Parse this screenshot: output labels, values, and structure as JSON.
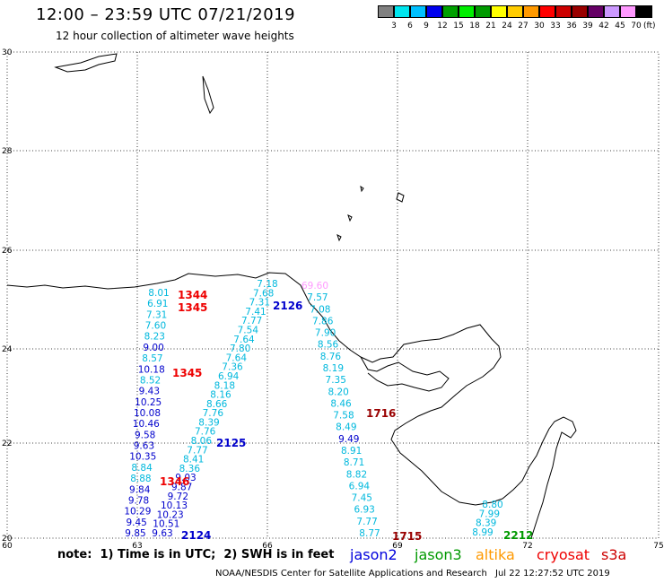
{
  "header": {
    "title": "12:00 – 23:59 UTC 07/21/2019",
    "subtitle": "12 hour collection of altimeter wave heights"
  },
  "colorscale": {
    "unit": "(ft)",
    "labels": [
      "3",
      "6",
      "9",
      "12",
      "15",
      "18",
      "21",
      "24",
      "27",
      "30",
      "33",
      "36",
      "39",
      "42",
      "45",
      "70"
    ],
    "colors": [
      "#808080",
      "#00e5ee",
      "#00c0ff",
      "#0000ee",
      "#00a000",
      "#00ee00",
      "#009a00",
      "#ffff00",
      "#ffcc00",
      "#ff9900",
      "#ff0000",
      "#cc0000",
      "#990000",
      "#660066",
      "#cc99ff",
      "#ff99ff",
      "#000000"
    ]
  },
  "axes": {
    "lon_labels": [
      "60",
      "63",
      "66",
      "69",
      "72",
      "75"
    ],
    "lat_labels": [
      "30",
      "28",
      "26",
      "24",
      "22",
      "20"
    ]
  },
  "passes": [
    {
      "label": "1344",
      "color": "#ee0000"
    },
    {
      "label": "1345",
      "color": "#ee0000"
    },
    {
      "label": "1345",
      "color": "#ee0000"
    },
    {
      "label": "1346",
      "color": "#ee0000"
    },
    {
      "label": "2126",
      "color": "#0000cc"
    },
    {
      "label": "2125",
      "color": "#0000cc"
    },
    {
      "label": "2124",
      "color": "#0000cc"
    },
    {
      "label": "1716",
      "color": "#990000"
    },
    {
      "label": "1715",
      "color": "#990000"
    },
    {
      "label": "2212",
      "color": "#009900"
    }
  ],
  "tracks": {
    "left": [
      "8.01",
      "6.91",
      "7.31",
      "7.60",
      "8.23",
      "9.00",
      "8.57",
      "10.18",
      "8.52",
      "9.43",
      "10.25",
      "10.08",
      "10.46",
      "9.58",
      "9.63",
      "10.35",
      "8.84",
      "8.88",
      "9.84",
      "9.78",
      "10.29",
      "9.45",
      "9.85"
    ],
    "middle": [
      "7.18",
      "7.68",
      "7.31",
      "7.41",
      "7.77",
      "7.54",
      "7.64",
      "7.80",
      "7.64",
      "7.36",
      "6.94",
      "8.18",
      "8.16",
      "8.66",
      "7.76",
      "8.39",
      "7.76",
      "8.06",
      "7.77",
      "8.41",
      "8.36",
      "9.03",
      "9.87",
      "9.72",
      "10.13",
      "10.23",
      "10.51",
      "9.63"
    ],
    "right": [
      "69.60",
      "7.57",
      "7.08",
      "7.86",
      "7.90",
      "8.56",
      "8.76",
      "8.19",
      "7.35",
      "8.20",
      "8.46",
      "7.58",
      "8.49",
      "9.49",
      "8.91",
      "8.71",
      "8.82",
      "6.94",
      "7.45",
      "6.93",
      "7.77",
      "8.77"
    ],
    "far_right": [
      "8.80",
      "7.99",
      "8.39",
      "8.99"
    ]
  },
  "footer": {
    "note": "note:  1) Time is in UTC;  2) SWH is in feet",
    "missions": [
      {
        "name": "jason2",
        "color": "#0000dd"
      },
      {
        "name": "jason3",
        "color": "#009900"
      },
      {
        "name": "altika",
        "color": "#ff9900"
      },
      {
        "name": "cryosat",
        "color": "#ee0000"
      },
      {
        "name": "s3a",
        "color": "#cc0000"
      }
    ],
    "credit": "NOAA/NESDIS Center for Satellite Applications and Research",
    "timestamp": "Jul 22 12:27:52 UTC 2019"
  }
}
